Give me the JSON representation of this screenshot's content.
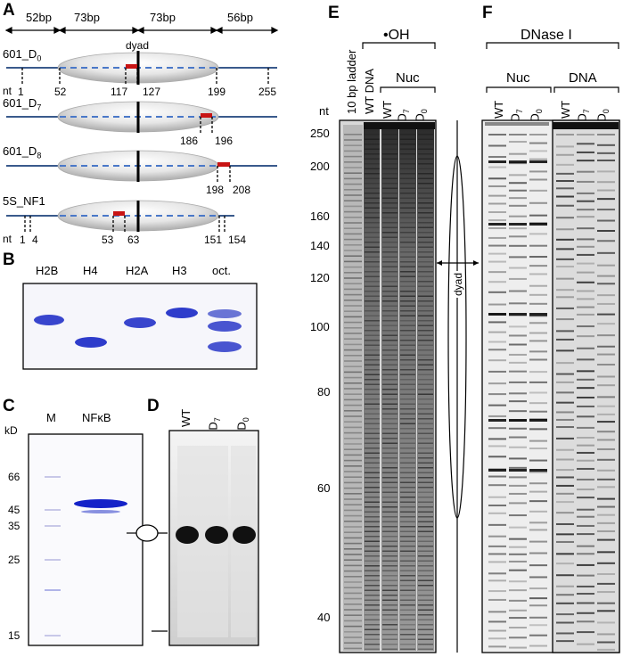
{
  "panels": {
    "A": {
      "letter": "A",
      "segments": [
        "52bp",
        "73bp",
        "73bp",
        "56bp"
      ],
      "dyad": "dyad",
      "constructs": [
        {
          "name": "601_D",
          "sub": "0",
          "ticks": [
            "1",
            "52",
            "117",
            "127",
            "199",
            "255"
          ],
          "nt": "nt"
        },
        {
          "name": "601_D",
          "sub": "7",
          "ticks": [
            "186",
            "196"
          ]
        },
        {
          "name": "601_D",
          "sub": "8",
          "ticks": [
            "198",
            "208"
          ]
        },
        {
          "name": "5S_NF1",
          "sub": "",
          "ticks": [
            "1",
            "4",
            "53",
            "63",
            "151",
            "154"
          ],
          "nt": "nt"
        }
      ]
    },
    "B": {
      "letter": "B",
      "lanes": [
        "H2B",
        "H4",
        "H2A",
        "H3",
        "oct."
      ]
    },
    "C": {
      "letter": "C",
      "lanes": [
        "M",
        "NFκB"
      ],
      "unit": "kD",
      "markers": [
        "66",
        "45",
        "35",
        "25",
        "15"
      ]
    },
    "D": {
      "letter": "D",
      "lanes": [
        {
          "base": "WT",
          "sub": ""
        },
        {
          "base": "D",
          "sub": "7"
        },
        {
          "base": "D",
          "sub": "0"
        }
      ]
    },
    "E": {
      "letter": "E",
      "title": "•OH",
      "group": "Nuc",
      "lanes": [
        {
          "base": "10 bp ladder",
          "sub": ""
        },
        {
          "base": "WT DNA",
          "sub": ""
        },
        {
          "base": "WT",
          "sub": ""
        },
        {
          "base": "D",
          "sub": "7"
        },
        {
          "base": "D",
          "sub": "0"
        }
      ],
      "nt": "nt",
      "markers": [
        "250",
        "200",
        "160",
        "140",
        "120",
        "100",
        "80",
        "60",
        "40"
      ],
      "dyad": "dyad"
    },
    "F": {
      "letter": "F",
      "title": "DNase I",
      "groups": [
        "Nuc",
        "DNA"
      ],
      "lanes": [
        {
          "base": "WT",
          "sub": ""
        },
        {
          "base": "D",
          "sub": "7"
        },
        {
          "base": "D",
          "sub": "0"
        },
        {
          "base": "WT",
          "sub": ""
        },
        {
          "base": "D",
          "sub": "7"
        },
        {
          "base": "D",
          "sub": "0"
        }
      ]
    }
  },
  "colors": {
    "dna": "#3a5a8c",
    "dashed": "#4a78c8",
    "site": "#c81414",
    "coomassie": "#2332c8",
    "gel_bg_light": "#f2f2f2",
    "gel_bg_dark": "#5a5a5a"
  }
}
